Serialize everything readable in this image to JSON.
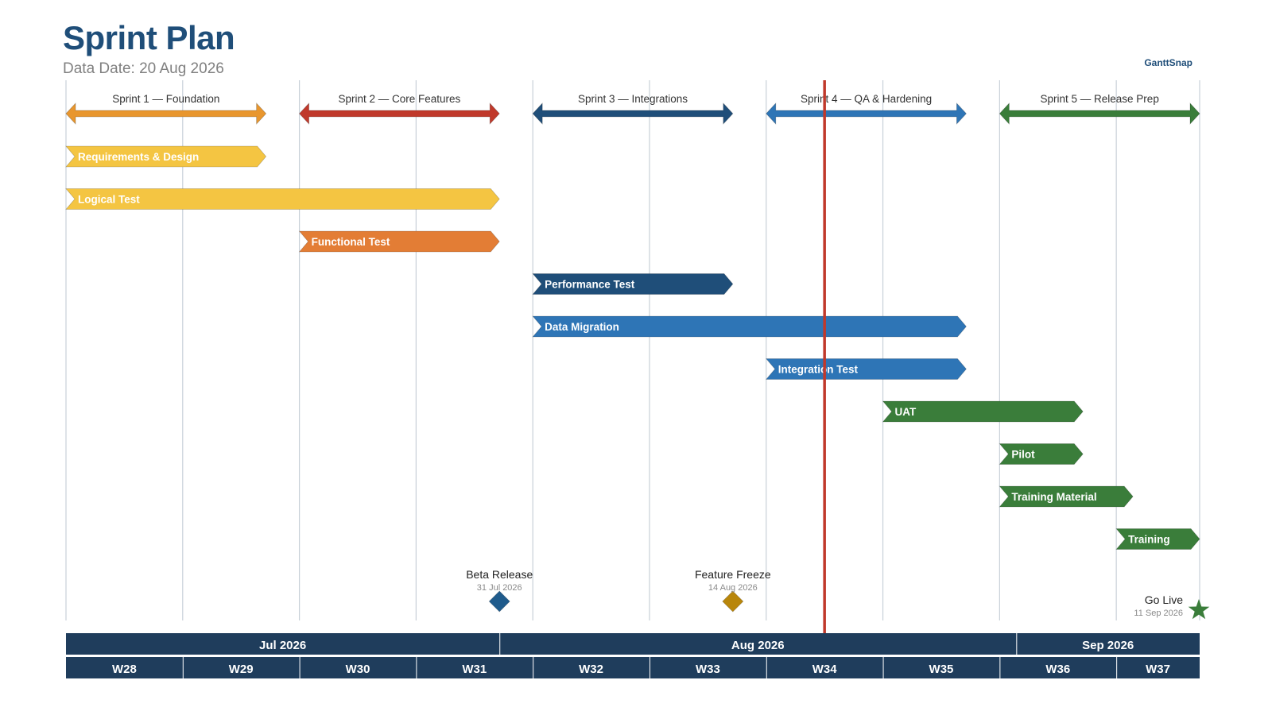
{
  "header": {
    "title": "Sprint Plan",
    "subtitle": "Data Date: 20 Aug 2026",
    "brand": "GanttSnap"
  },
  "colors": {
    "header_band": "#1f3d5c",
    "grid": "#c8d0d8",
    "today_line": "#c0392b"
  },
  "chart_data": {
    "type": "gantt",
    "data_date": "2026-08-20",
    "start": "2026-07-06",
    "end": "2026-09-12",
    "sprints": [
      {
        "name": "Sprint 1 — Foundation",
        "start": "2026-07-06",
        "end": "2026-07-17",
        "color": "#e8962e"
      },
      {
        "name": "Sprint 2 — Core Features",
        "start": "2026-07-20",
        "end": "2026-07-31",
        "color": "#c0392b"
      },
      {
        "name": "Sprint 3 — Integrations",
        "start": "2026-08-03",
        "end": "2026-08-14",
        "color": "#1f4e79"
      },
      {
        "name": "Sprint 4 — QA & Hardening",
        "start": "2026-08-17",
        "end": "2026-08-28",
        "color": "#2e75b6"
      },
      {
        "name": "Sprint 5 — Release Prep",
        "start": "2026-08-31",
        "end": "2026-09-12",
        "color": "#3a7d3a"
      }
    ],
    "tasks": [
      {
        "name": "Requirements & Design",
        "start": "2026-07-06",
        "end": "2026-07-17",
        "color": "#f4c542"
      },
      {
        "name": "Logical Test",
        "start": "2026-07-06",
        "end": "2026-07-31",
        "color": "#f4c542"
      },
      {
        "name": "Functional Test",
        "start": "2026-07-20",
        "end": "2026-07-31",
        "color": "#e37d35"
      },
      {
        "name": "Performance Test",
        "start": "2026-08-03",
        "end": "2026-08-14",
        "color": "#1f4e79"
      },
      {
        "name": "Data Migration",
        "start": "2026-08-03",
        "end": "2026-08-28",
        "color": "#2e75b6"
      },
      {
        "name": "Integration Test",
        "start": "2026-08-17",
        "end": "2026-08-28",
        "color": "#2e75b6"
      },
      {
        "name": "UAT",
        "start": "2026-08-24",
        "end": "2026-09-04",
        "color": "#3a7d3a"
      },
      {
        "name": "Pilot",
        "start": "2026-08-31",
        "end": "2026-09-04",
        "color": "#3a7d3a"
      },
      {
        "name": "Training Material",
        "start": "2026-08-31",
        "end": "2026-09-07",
        "color": "#3a7d3a"
      },
      {
        "name": "Training",
        "start": "2026-09-07",
        "end": "2026-09-11",
        "color": "#3a7d3a"
      }
    ],
    "milestones": [
      {
        "name": "Beta Release",
        "date_label": "31 Jul 2026",
        "date": "2026-07-31",
        "shape": "diamond",
        "color": "#1f5b8c"
      },
      {
        "name": "Feature Freeze",
        "date_label": "14 Aug 2026",
        "date": "2026-08-14",
        "shape": "diamond",
        "color": "#b8860b"
      },
      {
        "name": "Go Live",
        "date_label": "11 Sep 2026",
        "date": "2026-09-11",
        "shape": "star",
        "color": "#3a7d3a"
      }
    ],
    "months": [
      {
        "label": "Jul 2026",
        "start": "2026-07-06",
        "end": "2026-08-01"
      },
      {
        "label": "Aug 2026",
        "start": "2026-08-01",
        "end": "2026-09-01"
      },
      {
        "label": "Sep 2026",
        "start": "2026-09-01",
        "end": "2026-09-12"
      }
    ],
    "weeks": [
      {
        "label": "W28",
        "start": "2026-07-06"
      },
      {
        "label": "W29",
        "start": "2026-07-13"
      },
      {
        "label": "W30",
        "start": "2026-07-20"
      },
      {
        "label": "W31",
        "start": "2026-07-27"
      },
      {
        "label": "W32",
        "start": "2026-08-03"
      },
      {
        "label": "W33",
        "start": "2026-08-10"
      },
      {
        "label": "W34",
        "start": "2026-08-17"
      },
      {
        "label": "W35",
        "start": "2026-08-24"
      },
      {
        "label": "W36",
        "start": "2026-08-31"
      },
      {
        "label": "W37",
        "start": "2026-09-07"
      }
    ]
  }
}
